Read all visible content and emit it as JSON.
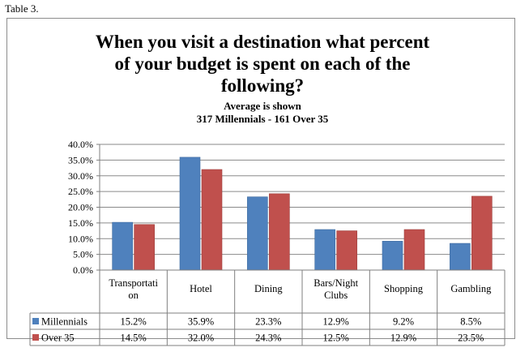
{
  "caption": "Table 3.",
  "chart_data": {
    "type": "bar",
    "title": "When you visit a destination what percent of your budget is spent on each of the following?",
    "subtitle_lines": [
      "Average is shown",
      "317 Millennials - 161 Over 35"
    ],
    "categories": [
      "Transportation",
      "Hotel",
      "Dining",
      "Bars/Night Clubs",
      "Shopping",
      "Gambling"
    ],
    "category_label_lines": [
      [
        "Transportati",
        "on"
      ],
      [
        "Hotel"
      ],
      [
        "Dining"
      ],
      [
        "Bars/Night",
        "Clubs"
      ],
      [
        "Shopping"
      ],
      [
        "Gambling"
      ]
    ],
    "series": [
      {
        "name": "Millennials",
        "color": "#4f81bd",
        "values": [
          15.2,
          35.9,
          23.3,
          12.9,
          9.2,
          8.5
        ],
        "labels": [
          "15.2%",
          "35.9%",
          "23.3%",
          "12.9%",
          "9.2%",
          "8.5%"
        ]
      },
      {
        "name": "Over 35",
        "color": "#c0504d",
        "values": [
          14.5,
          32.0,
          24.3,
          12.5,
          12.9,
          23.5
        ],
        "labels": [
          "14.5%",
          "32.0%",
          "24.3%",
          "12.5%",
          "12.9%",
          "23.5%"
        ]
      }
    ],
    "ylim": [
      0,
      40
    ],
    "yticks": [
      "0.0%",
      "5.0%",
      "10.0%",
      "15.0%",
      "20.0%",
      "25.0%",
      "30.0%",
      "35.0%",
      "40.0%"
    ],
    "grid": true,
    "legend": "data-table"
  }
}
